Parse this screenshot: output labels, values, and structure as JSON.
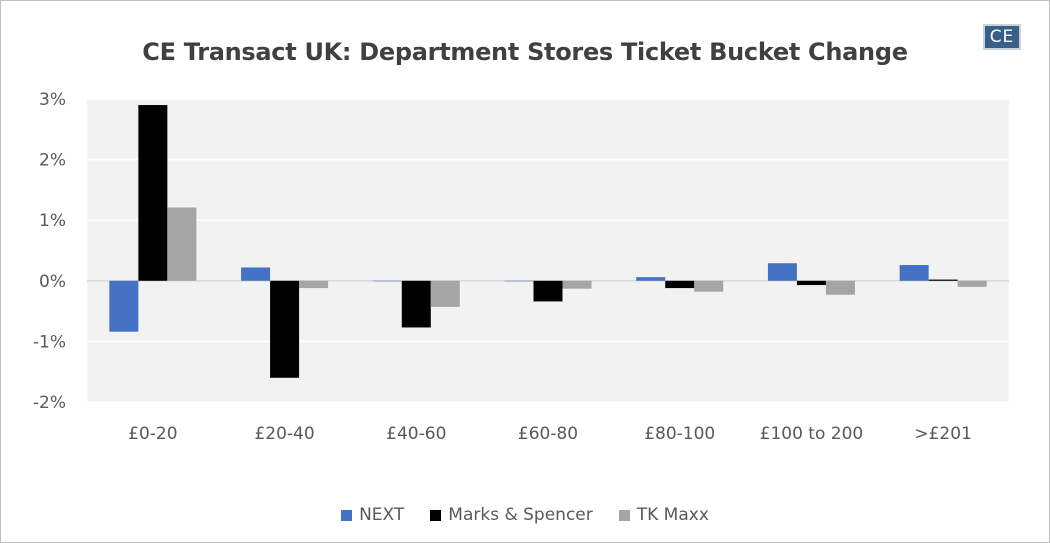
{
  "chart_data": {
    "type": "bar",
    "title": "CE Transact UK: Department Stores Ticket Bucket Change",
    "logo_text": "CE",
    "categories": [
      "£0-20",
      "£20-40",
      "£40-60",
      "£60-80",
      "£80-100",
      "£100 to 200",
      ">£201"
    ],
    "series": [
      {
        "name": "NEXT",
        "color": "#4472c4",
        "values": [
          -0.84,
          0.22,
          0.0,
          0.0,
          0.06,
          0.29,
          0.26
        ]
      },
      {
        "name": "Marks & Spencer",
        "color": "#000000",
        "values": [
          2.9,
          -1.6,
          -0.77,
          -0.34,
          -0.12,
          -0.07,
          0.02
        ]
      },
      {
        "name": "TK Maxx",
        "color": "#a5a5a5",
        "values": [
          1.21,
          -0.12,
          -0.43,
          -0.13,
          -0.18,
          -0.23,
          -0.1
        ]
      }
    ],
    "yticks": [
      "3%",
      "2%",
      "1%",
      "0%",
      "-1%",
      "-2%"
    ],
    "ytick_values": [
      3,
      2,
      1,
      0,
      -1,
      -2
    ],
    "ylim": [
      -2,
      3
    ],
    "xlabel": "",
    "ylabel": "",
    "grid": true,
    "legend_position": "bottom",
    "plot_background": "#f2f2f2",
    "grid_color": "#ffffff"
  }
}
